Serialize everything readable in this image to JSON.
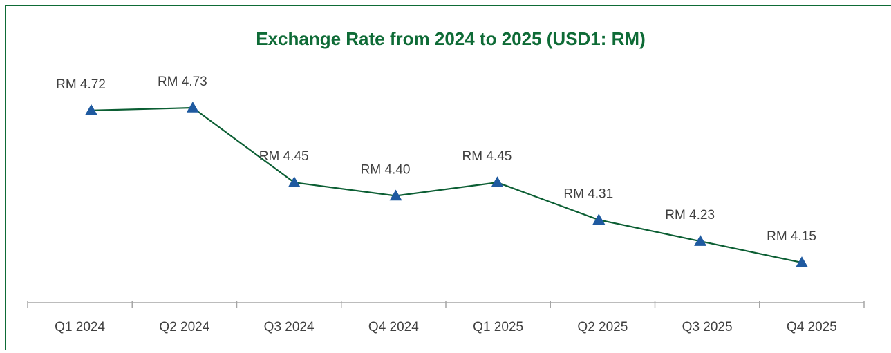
{
  "chart_data": {
    "type": "line",
    "title": "Exchange Rate from 2024 to 2025 (USD1: RM)",
    "categories": [
      "Q1 2024",
      "Q2 2024",
      "Q3 2024",
      "Q4 2024",
      "Q1 2025",
      "Q2 2025",
      "Q3 2025",
      "Q4 2025"
    ],
    "series": [
      {
        "name": "Exchange Rate",
        "color": "#0b5e33",
        "marker_color": "#1f5aa0",
        "values": [
          4.72,
          4.73,
          4.45,
          4.4,
          4.45,
          4.31,
          4.23,
          4.15
        ],
        "value_labels": [
          "RM 4.72",
          "RM 4.73",
          "RM 4.45",
          "RM 4.40",
          "RM 4.45",
          "RM 4.31",
          "RM 4.23",
          "RM 4.15"
        ]
      }
    ],
    "ylim": [
      4.0,
      4.8
    ]
  }
}
